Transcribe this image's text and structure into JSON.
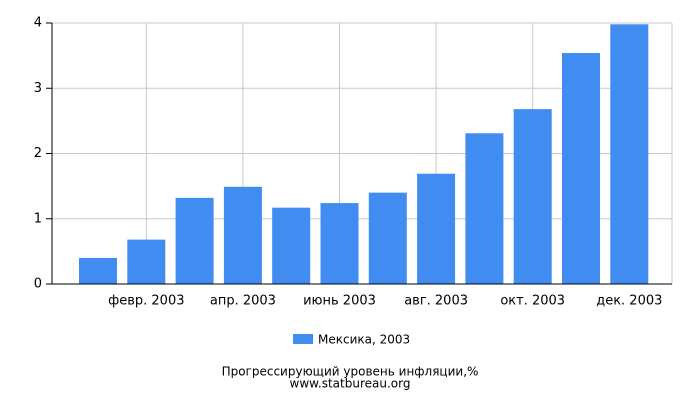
{
  "chart_data": {
    "type": "bar",
    "title": "Прогрессирующий уровень инфляции,%",
    "source": "www.statbureau.org",
    "categories": [
      null,
      "февр. 2003",
      null,
      "апр. 2003",
      null,
      "июнь 2003",
      null,
      "авг. 2003",
      null,
      "окт. 2003",
      null,
      "дек. 2003"
    ],
    "series": [
      {
        "name": "Мексика, 2003",
        "color": "#418cf0",
        "values": [
          0.4,
          0.68,
          1.32,
          1.49,
          1.17,
          1.24,
          1.4,
          1.69,
          2.31,
          2.68,
          3.54,
          3.98
        ]
      }
    ],
    "ylim": [
      0,
      4
    ],
    "yticks": [
      0,
      1,
      2,
      3,
      4
    ],
    "grid": true
  }
}
